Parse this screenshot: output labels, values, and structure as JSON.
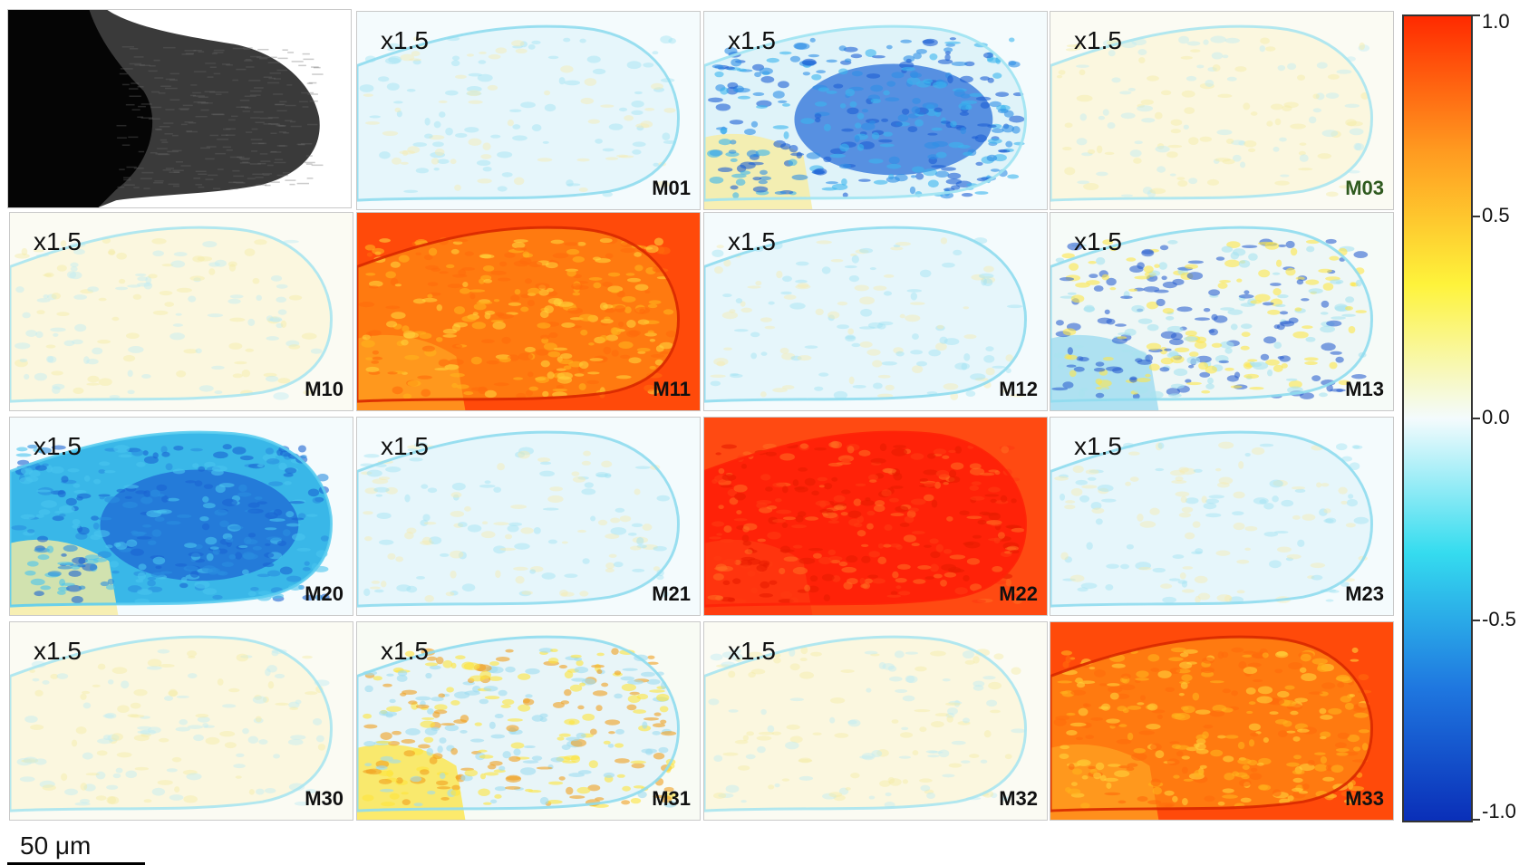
{
  "colorbar": {
    "ticks": [
      "1.0",
      "0.5",
      "0.0",
      "-0.5",
      "-1.0"
    ],
    "stops": [
      "#0a2fb8",
      "#1f78e0",
      "#35dcef",
      "#f4fbfd",
      "#fef33b",
      "#ff9a20",
      "#ff2a00"
    ]
  },
  "scale_bar": {
    "label": "50 μm"
  },
  "panels": [
    {
      "label": "",
      "scale": "",
      "kind": "micrograph"
    },
    {
      "label": "M01",
      "scale": "x1.5",
      "kind": "lightcyan"
    },
    {
      "label": "",
      "scale": "x1.5",
      "kind": "blue"
    },
    {
      "label": "M03",
      "scale": "x1.5",
      "kind": "lightyellow",
      "label_color": "#2f5a1f"
    },
    {
      "label": "M10",
      "scale": "x1.5",
      "kind": "lightyellow"
    },
    {
      "label": "M11",
      "scale": "",
      "kind": "orange"
    },
    {
      "label": "M12",
      "scale": "x1.5",
      "kind": "lightcyan"
    },
    {
      "label": "M13",
      "scale": "x1.5",
      "kind": "mixed"
    },
    {
      "label": "M20",
      "scale": "x1.5",
      "kind": "blue2"
    },
    {
      "label": "M21",
      "scale": "x1.5",
      "kind": "lightcyan"
    },
    {
      "label": "M22",
      "scale": "",
      "kind": "red"
    },
    {
      "label": "M23",
      "scale": "x1.5",
      "kind": "lightcyan"
    },
    {
      "label": "M30",
      "scale": "x1.5",
      "kind": "lightyellow"
    },
    {
      "label": "M31",
      "scale": "x1.5",
      "kind": "mixed2"
    },
    {
      "label": "M32",
      "scale": "x1.5",
      "kind": "lightyellow"
    },
    {
      "label": "M33",
      "scale": "",
      "kind": "orange"
    }
  ]
}
